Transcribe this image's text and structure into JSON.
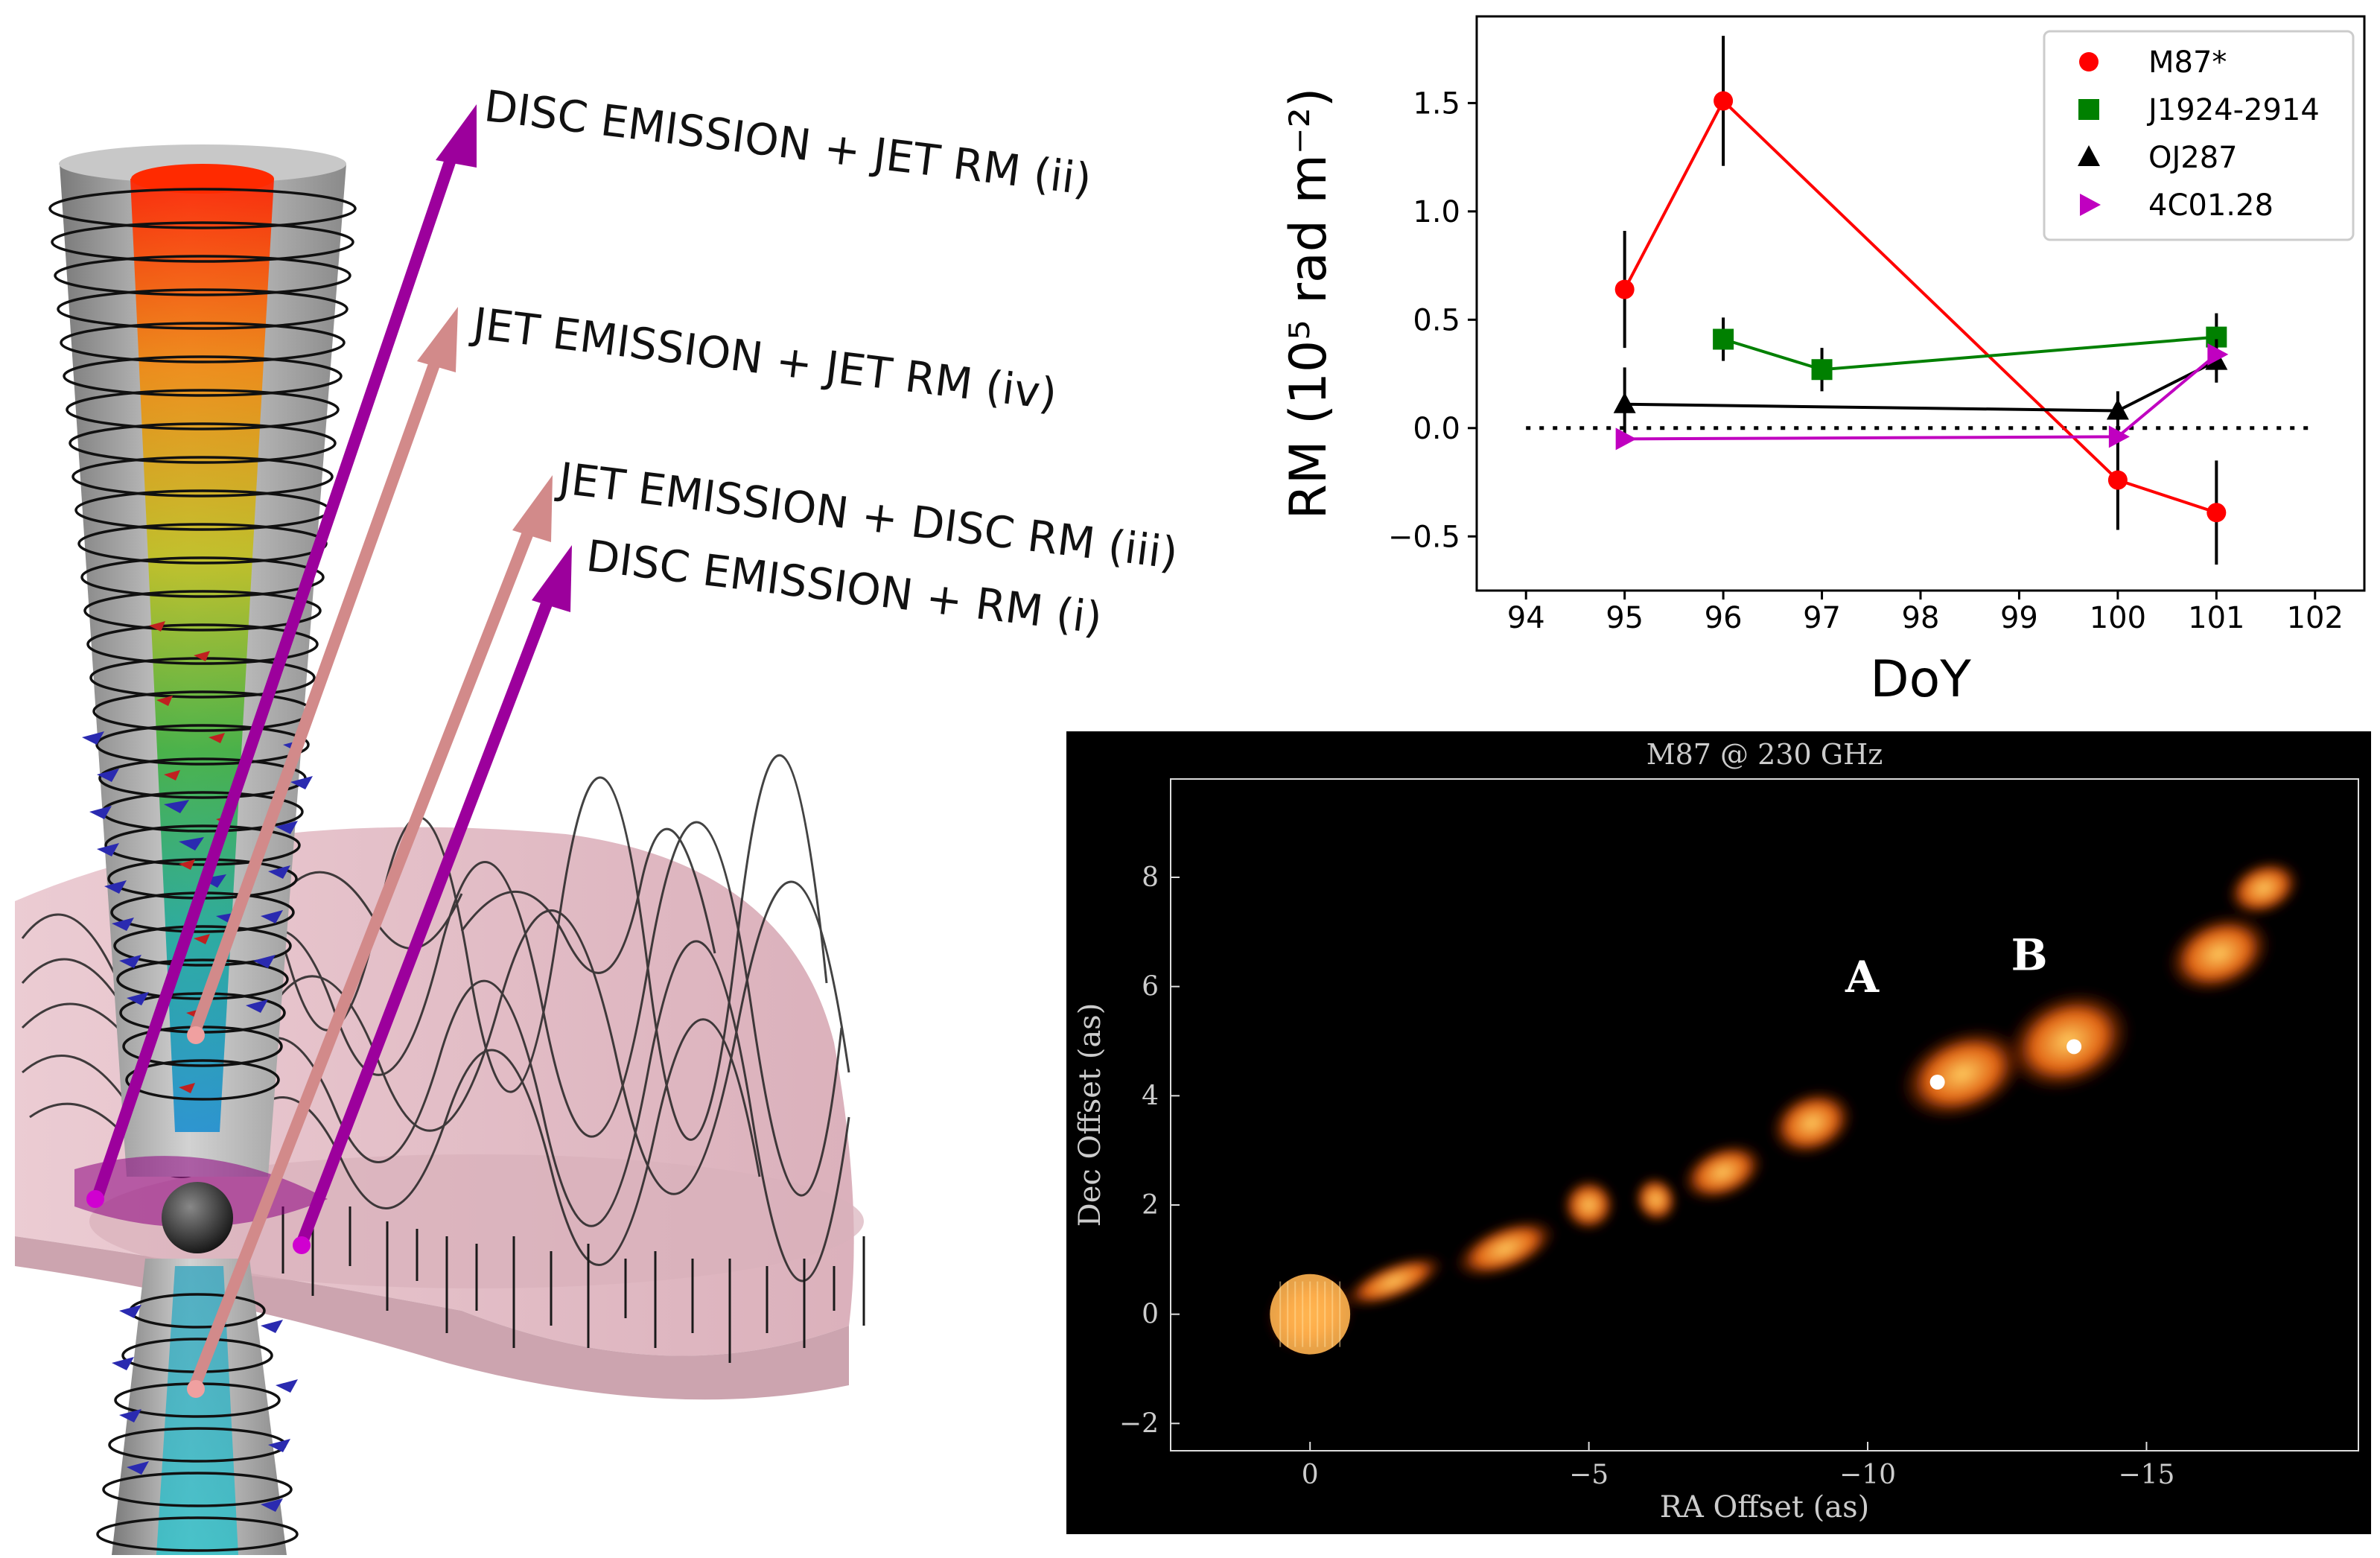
{
  "scene": {
    "labels": [
      "DISC EMISSION + JET RM (ii)",
      "JET EMISSION + JET RM (iv)",
      "JET EMISSION + DISC RM (iii)",
      "DISC EMISSION + RM (i)"
    ],
    "colors": {
      "disc_arrow": "#a000a0",
      "jet_arrow": "#d89090",
      "disc": "#e8c4cc",
      "jet_cone": "#b8b8b8"
    }
  },
  "chart_data": [
    {
      "type": "line",
      "xlabel": "DoY",
      "ylabel": "RM (10⁵ rad m⁻²)",
      "xlim": [
        93.5,
        102.5
      ],
      "ylim": [
        -0.75,
        1.9
      ],
      "xticks": [
        94,
        95,
        96,
        97,
        98,
        99,
        100,
        101,
        102
      ],
      "yticks": [
        -0.5,
        0.0,
        0.5,
        1.0,
        1.5
      ],
      "ytick_labels": [
        "−0.5",
        "0.0",
        "0.5",
        "1.0",
        "1.5"
      ],
      "reference_line": {
        "y": 0.0,
        "x_range": [
          94,
          102
        ],
        "style": "dotted"
      },
      "legend": {
        "placement": "top-right"
      },
      "series": [
        {
          "name": "M87*",
          "color": "#ff0000",
          "marker": "circle",
          "x": [
            95,
            96,
            100,
            101
          ],
          "y": [
            0.64,
            1.51,
            -0.24,
            -0.39
          ],
          "err": [
            0.27,
            0.3,
            0.23,
            0.24
          ]
        },
        {
          "name": "J1924-2914",
          "color": "#008000",
          "marker": "square",
          "x": [
            96,
            97,
            101
          ],
          "y": [
            0.41,
            0.27,
            0.42
          ],
          "err": [
            0.1,
            0.1,
            0.11
          ]
        },
        {
          "name": "OJ287",
          "color": "#000000",
          "marker": "triangle-up",
          "x": [
            95,
            100,
            101
          ],
          "y": [
            0.11,
            0.08,
            0.31
          ],
          "err": [
            0.17,
            0.09,
            0.1
          ]
        },
        {
          "name": "4C01.28",
          "color": "#c000c0",
          "marker": "triangle-right",
          "x": [
            95,
            100,
            101
          ],
          "y": [
            -0.05,
            -0.04,
            0.34
          ],
          "err": [
            0.0,
            0.0,
            0.0
          ]
        }
      ]
    },
    {
      "type": "heatmap",
      "title": "M87 @ 230 GHz",
      "xlabel": "RA Offset (as)",
      "ylabel": "Dec Offset (as)",
      "xlim": [
        2.5,
        -18.8
      ],
      "ylim": [
        -2.5,
        9.8
      ],
      "xticks": [
        0,
        -5,
        -10,
        -15
      ],
      "xtick_labels": [
        "0",
        "−5",
        "−10",
        "−15"
      ],
      "yticks": [
        -2,
        0,
        2,
        4,
        6,
        8
      ],
      "ytick_labels": [
        "−2",
        "0",
        "2",
        "4",
        "6",
        "8"
      ],
      "annotations": [
        {
          "text": "A",
          "x": -9.9,
          "y": 5.9
        },
        {
          "text": "B",
          "x": -12.9,
          "y": 6.3
        }
      ],
      "markers": [
        {
          "x": -11.25,
          "y": 4.25
        },
        {
          "x": -13.7,
          "y": 4.9
        }
      ],
      "jet_knots": [
        {
          "x": 0.0,
          "y": 0.0,
          "rx": 0.8,
          "ry": 0.7
        },
        {
          "x": -1.5,
          "y": 0.6,
          "rx": 1.0,
          "ry": 0.35
        },
        {
          "x": -3.5,
          "y": 1.2,
          "rx": 1.0,
          "ry": 0.45
        },
        {
          "x": -5.0,
          "y": 2.0,
          "rx": 0.5,
          "ry": 0.5
        },
        {
          "x": -6.2,
          "y": 2.1,
          "rx": 0.4,
          "ry": 0.45
        },
        {
          "x": -7.4,
          "y": 2.6,
          "rx": 0.8,
          "ry": 0.5
        },
        {
          "x": -9.0,
          "y": 3.5,
          "rx": 0.8,
          "ry": 0.6
        },
        {
          "x": -11.7,
          "y": 4.4,
          "rx": 1.2,
          "ry": 0.8
        },
        {
          "x": -13.6,
          "y": 5.0,
          "rx": 1.2,
          "ry": 0.9
        },
        {
          "x": -16.3,
          "y": 6.6,
          "rx": 1.0,
          "ry": 0.7
        },
        {
          "x": -17.1,
          "y": 7.8,
          "rx": 0.7,
          "ry": 0.5
        }
      ]
    }
  ]
}
